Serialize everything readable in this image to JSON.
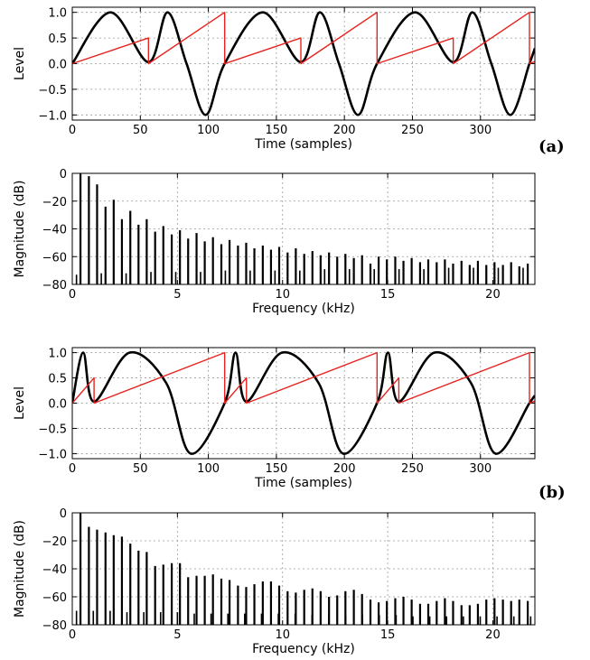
{
  "panel_labels": {
    "a": "(a)",
    "b": "(b)"
  },
  "chart_data": [
    {
      "type": "line",
      "id": "a-time",
      "xlabel": "Time (samples)",
      "ylabel": "Level",
      "xlim": [
        0,
        340
      ],
      "ylim": [
        -1.1,
        1.1
      ],
      "xticks": [
        "0",
        "50",
        "100",
        "150",
        "200",
        "250",
        "300"
      ],
      "yticks": [
        "−1.0",
        "−0.5",
        "0.0",
        "0.5",
        "1.0"
      ],
      "grid": true,
      "series": [
        {
          "color": "#000000",
          "width": 2.6,
          "x": [
            0,
            28,
            56,
            70,
            84,
            98,
            112,
            140,
            168,
            182,
            196,
            210,
            224,
            252,
            280,
            294,
            308,
            322,
            336,
            340
          ],
          "y": [
            0,
            1.0,
            0.03,
            1.0,
            0,
            -1.0,
            0,
            1.0,
            0.03,
            1.0,
            0,
            -1.0,
            0,
            1.0,
            0.03,
            1.0,
            0,
            -1.0,
            0,
            0.3
          ]
        },
        {
          "color": "#e8231f",
          "width": 1.4,
          "x": [
            0,
            56,
            56.01,
            112,
            112.01,
            168,
            168.01,
            224,
            224.01,
            280,
            280.01,
            336,
            336.01,
            340
          ],
          "y": [
            0,
            0.5,
            0.0,
            1.0,
            0.0,
            0.5,
            0.0,
            1.0,
            0.0,
            0.5,
            0.0,
            1.0,
            0.0,
            0.04
          ]
        }
      ]
    },
    {
      "type": "bar",
      "id": "a-spectrum",
      "xlabel": "Frequency (kHz)",
      "ylabel": "Magnitude (dB)",
      "xlim": [
        0,
        22
      ],
      "ylim": [
        -80,
        0
      ],
      "xticks": [
        "0",
        "5",
        "10",
        "15",
        "20"
      ],
      "yticks": [
        "−80",
        "−60",
        "−40",
        "−20",
        "0"
      ],
      "grid": true,
      "harmonics_khz": [
        0.39,
        0.79,
        1.18,
        1.58,
        1.97,
        2.36,
        2.76,
        3.15,
        3.54,
        3.94,
        4.33,
        4.73,
        5.12,
        5.51,
        5.91,
        6.3,
        6.69,
        7.09,
        7.48,
        7.88,
        8.27,
        8.66,
        9.06,
        9.45,
        9.84,
        10.24,
        10.63,
        11.03,
        11.42,
        11.81,
        12.21,
        12.6,
        12.99,
        13.39,
        13.78,
        14.18,
        14.57,
        14.96,
        15.36,
        15.75,
        16.14,
        16.54,
        16.93,
        17.33,
        17.72,
        18.11,
        18.51,
        18.9,
        19.29,
        19.69,
        20.08,
        20.48,
        20.87,
        21.26,
        21.66
      ],
      "harmonics_db": [
        0,
        -2,
        -8,
        -24,
        -19,
        -33,
        -27,
        -37,
        -33,
        -42,
        -38,
        -44,
        -41,
        -47,
        -43,
        -49,
        -46,
        -51,
        -48,
        -52,
        -50,
        -54,
        -52,
        -55,
        -53,
        -57,
        -54,
        -58,
        -56,
        -59,
        -57,
        -60,
        -58,
        -61,
        -59,
        -65,
        -60,
        -62,
        -60,
        -63,
        -61,
        -64,
        -62,
        -64,
        -62,
        -65,
        -63,
        -66,
        -63,
        -66,
        -64,
        -66,
        -64,
        -67,
        -65
      ],
      "floor_khz": [
        0.2,
        1.38,
        2.56,
        3.74,
        4.92,
        6.1,
        7.28,
        8.46,
        9.64,
        10.82,
        12.0,
        13.18,
        14.36,
        15.54,
        16.72,
        17.9,
        19.08,
        20.26,
        21.44
      ],
      "floor_db": [
        -73,
        -72,
        -72,
        -71,
        -71,
        -71,
        -70,
        -70,
        -70,
        -70,
        -69,
        -69,
        -69,
        -69,
        -69,
        -68,
        -68,
        -68,
        -68
      ]
    },
    {
      "type": "line",
      "id": "b-time",
      "xlabel": "Time (samples)",
      "ylabel": "Level",
      "xlim": [
        0,
        340
      ],
      "ylim": [
        -1.1,
        1.1
      ],
      "xticks": [
        "0",
        "50",
        "100",
        "150",
        "200",
        "250",
        "300"
      ],
      "yticks": [
        "−1.0",
        "−0.5",
        "0.0",
        "0.5",
        "1.0"
      ],
      "grid": true,
      "series": [
        {
          "color": "#000000",
          "width": 2.6,
          "x": [
            0,
            8,
            16,
            42,
            69,
            87,
            112,
            120,
            128,
            154,
            181,
            199,
            224,
            232,
            240,
            266,
            293,
            311,
            336,
            340
          ],
          "y": [
            0,
            1.0,
            0.03,
            1.0,
            0.4,
            -1.0,
            0,
            1.0,
            0.03,
            1.0,
            0.4,
            -1.0,
            0,
            1.0,
            0.03,
            1.0,
            0.4,
            -1.0,
            0,
            0.15
          ]
        },
        {
          "color": "#e8231f",
          "width": 1.4,
          "x": [
            0,
            16,
            16.01,
            112,
            112.01,
            128,
            128.01,
            224,
            224.01,
            240,
            240.01,
            336,
            336.01,
            340
          ],
          "y": [
            0,
            0.5,
            0.0,
            1.0,
            0.0,
            0.5,
            0.0,
            1.0,
            0.0,
            0.5,
            0.0,
            1.0,
            0.0,
            0.04
          ]
        }
      ]
    },
    {
      "type": "bar",
      "id": "b-spectrum",
      "xlabel": "Frequency (kHz)",
      "ylabel": "Magnitude (dB)",
      "xlim": [
        0,
        22
      ],
      "ylim": [
        -80,
        0
      ],
      "xticks": [
        "0",
        "5",
        "10",
        "15",
        "20"
      ],
      "yticks": [
        "−80",
        "−60",
        "−40",
        "−20",
        "0"
      ],
      "grid": true,
      "harmonics_khz": [
        0.39,
        0.79,
        1.18,
        1.58,
        1.97,
        2.36,
        2.76,
        3.15,
        3.54,
        3.94,
        4.33,
        4.73,
        5.12,
        5.51,
        5.91,
        6.3,
        6.69,
        7.09,
        7.48,
        7.88,
        8.27,
        8.66,
        9.06,
        9.45,
        9.84,
        10.24,
        10.63,
        11.03,
        11.42,
        11.81,
        12.21,
        12.6,
        12.99,
        13.39,
        13.78,
        14.18,
        14.57,
        14.96,
        15.36,
        15.75,
        16.14,
        16.54,
        16.93,
        17.33,
        17.72,
        18.11,
        18.51,
        18.9,
        19.29,
        19.69,
        20.08,
        20.48,
        20.87,
        21.26,
        21.66
      ],
      "harmonics_db": [
        0,
        -10,
        -12,
        -14,
        -16,
        -17,
        -22,
        -27,
        -28,
        -38,
        -37,
        -36,
        -36,
        -46,
        -45,
        -45,
        -44,
        -47,
        -48,
        -52,
        -53,
        -51,
        -49,
        -49,
        -52,
        -56,
        -57,
        -55,
        -54,
        -56,
        -60,
        -59,
        -56,
        -55,
        -58,
        -62,
        -64,
        -63,
        -61,
        -60,
        -62,
        -65,
        -65,
        -63,
        -61,
        -63,
        -66,
        -66,
        -65,
        -62,
        -61,
        -62,
        -63,
        -62,
        -63
      ],
      "floor_khz": [
        0.2,
        1.0,
        1.8,
        2.6,
        3.4,
        4.2,
        5.0,
        5.8,
        6.6,
        7.4,
        8.2,
        9.0,
        9.8,
        10.6,
        11.4,
        12.2,
        13.0,
        13.8,
        14.6,
        15.4,
        16.2,
        17.0,
        17.8,
        18.6,
        19.4,
        20.2,
        21.0,
        21.8
      ],
      "floor_db": [
        -70,
        -70,
        -70,
        -71,
        -71,
        -71,
        -71,
        -72,
        -72,
        -72,
        -72,
        -72,
        -72,
        -72,
        -73,
        -73,
        -73,
        -73,
        -73,
        -73,
        -74,
        -74,
        -74,
        -74,
        -74,
        -74,
        -74,
        -74
      ]
    }
  ]
}
